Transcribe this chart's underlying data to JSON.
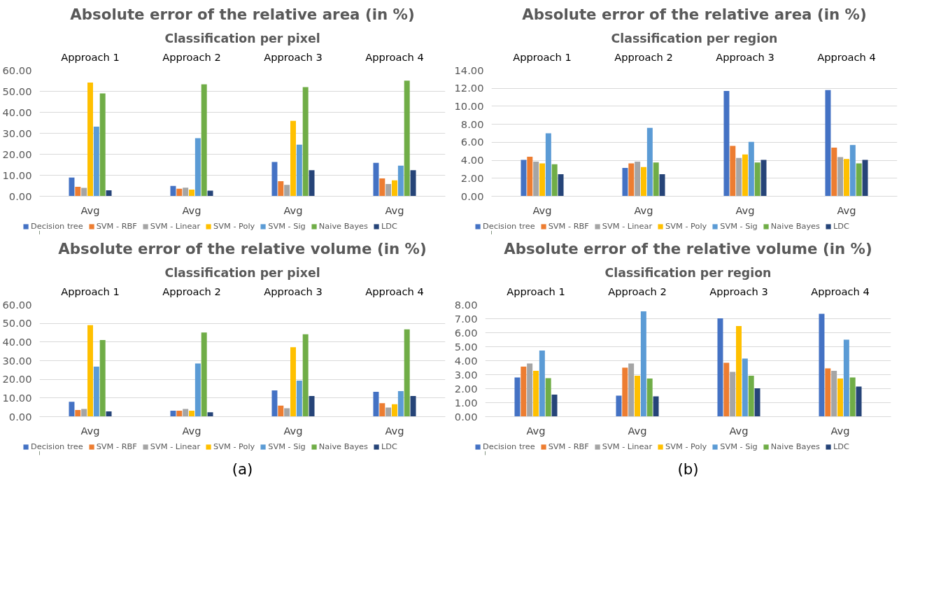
{
  "chart_data": [
    {
      "type": "bar",
      "title": "Absolute error of the relative area (in %)",
      "subtitle": "Classification per pixel",
      "categories": [
        "Avg",
        "Avg",
        "Avg",
        "Avg"
      ],
      "annotations": [
        "Approach 1",
        "Approach 2",
        "Approach 3",
        "Approach 4"
      ],
      "ylim": [
        0,
        60
      ],
      "yticks": [
        {
          "value": 0,
          "label": "0.00"
        },
        {
          "value": 10,
          "label": "10.00"
        },
        {
          "value": 20,
          "label": "20.00"
        },
        {
          "value": 30,
          "label": "30.00"
        },
        {
          "value": 40,
          "label": "40.00"
        },
        {
          "value": 50,
          "label": "50.00"
        },
        {
          "value": 60,
          "label": "60.00"
        }
      ],
      "grid": "y",
      "legend": "bottom",
      "series": [
        {
          "name": "Decision tree",
          "color": "#4472c4",
          "values": [
            8.9,
            4.9,
            16.3,
            15.9
          ]
        },
        {
          "name": "SVM - RBF",
          "color": "#ed7d31",
          "values": [
            4.5,
            3.6,
            7.2,
            8.5
          ]
        },
        {
          "name": "SVM - Linear",
          "color": "#a5a5a5",
          "values": [
            4.0,
            4.1,
            5.4,
            5.8
          ]
        },
        {
          "name": "SVM - Poly",
          "color": "#ffc000",
          "values": [
            54.2,
            3.2,
            35.9,
            7.6
          ]
        },
        {
          "name": "SVM - Sig",
          "color": "#5b9bd5",
          "values": [
            33.2,
            27.7,
            24.6,
            14.6
          ]
        },
        {
          "name": "Naive Bayes",
          "color": "#70ad47",
          "values": [
            49.0,
            53.3,
            52.0,
            55.1
          ]
        },
        {
          "name": "LDC",
          "color": "#264478",
          "values": [
            2.8,
            2.7,
            12.4,
            12.4
          ]
        }
      ]
    },
    {
      "type": "bar",
      "title": "Absolute error of the relative area (in %)",
      "subtitle": "Classification per region",
      "categories": [
        "Avg",
        "Avg",
        "Avg",
        "Avg"
      ],
      "annotations": [
        "Approach 1",
        "Approach 2",
        "Approach 3",
        "Approach 4"
      ],
      "ylim": [
        0,
        14
      ],
      "yticks": [
        {
          "value": 0,
          "label": "0.00"
        },
        {
          "value": 2,
          "label": "2.00"
        },
        {
          "value": 4,
          "label": "4.00"
        },
        {
          "value": 6,
          "label": "6.00"
        },
        {
          "value": 8,
          "label": "8.00"
        },
        {
          "value": 10,
          "label": "10.00"
        },
        {
          "value": 12,
          "label": "12.00"
        },
        {
          "value": 14,
          "label": "14.00"
        }
      ],
      "grid": "y",
      "legend": "bottom",
      "series": [
        {
          "name": "Decision tree",
          "color": "#4472c4",
          "values": [
            4.05,
            3.15,
            11.7,
            11.8
          ]
        },
        {
          "name": "SVM - RBF",
          "color": "#ed7d31",
          "values": [
            4.4,
            3.65,
            5.6,
            5.4
          ]
        },
        {
          "name": "SVM - Linear",
          "color": "#a5a5a5",
          "values": [
            3.85,
            3.85,
            4.25,
            4.35
          ]
        },
        {
          "name": "SVM - Poly",
          "color": "#ffc000",
          "values": [
            3.65,
            3.25,
            4.65,
            4.15
          ]
        },
        {
          "name": "SVM - Sig",
          "color": "#5b9bd5",
          "values": [
            7.0,
            7.6,
            6.05,
            5.7
          ]
        },
        {
          "name": "Naive Bayes",
          "color": "#70ad47",
          "values": [
            3.55,
            3.75,
            3.75,
            3.65
          ]
        },
        {
          "name": "LDC",
          "color": "#264478",
          "values": [
            2.45,
            2.45,
            4.05,
            4.05
          ]
        }
      ]
    },
    {
      "type": "bar",
      "title": "Absolute error of the relative volume (in %)",
      "subtitle": "Classification per pixel",
      "categories": [
        "Avg",
        "Avg",
        "Avg",
        "Avg"
      ],
      "annotations": [
        "Approach 1",
        "Approach 2",
        "Approach 3",
        "Approach 4",
        "(a)"
      ],
      "ylim": [
        0,
        60
      ],
      "yticks": [
        {
          "value": 0,
          "label": "0.00"
        },
        {
          "value": 10,
          "label": "10.00"
        },
        {
          "value": 20,
          "label": "20.00"
        },
        {
          "value": 30,
          "label": "30.00"
        },
        {
          "value": 40,
          "label": "40.00"
        },
        {
          "value": 50,
          "label": "50.00"
        },
        {
          "value": 60,
          "label": "60.00"
        }
      ],
      "grid": "y",
      "legend": "bottom",
      "series": [
        {
          "name": "Decision tree",
          "color": "#4472c4",
          "values": [
            8.0,
            3.2,
            14.1,
            13.3
          ]
        },
        {
          "name": "SVM - RBF",
          "color": "#ed7d31",
          "values": [
            3.6,
            3.2,
            5.9,
            7.2
          ]
        },
        {
          "name": "SVM - Linear",
          "color": "#a5a5a5",
          "values": [
            4.1,
            4.1,
            4.5,
            4.9
          ]
        },
        {
          "name": "SVM - Poly",
          "color": "#ffc000",
          "values": [
            49.0,
            3.2,
            37.2,
            6.7
          ]
        },
        {
          "name": "SVM - Sig",
          "color": "#5b9bd5",
          "values": [
            26.8,
            28.5,
            19.3,
            13.7
          ]
        },
        {
          "name": "Naive Bayes",
          "color": "#70ad47",
          "values": [
            41.1,
            45.1,
            44.2,
            46.8
          ]
        },
        {
          "name": "LDC",
          "color": "#264478",
          "values": [
            2.8,
            2.3,
            11.1,
            11.1
          ]
        }
      ]
    },
    {
      "type": "bar",
      "title": "Absolute error of the relative volume (in %)",
      "subtitle": "Classification per region",
      "categories": [
        "Avg",
        "Avg",
        "Avg",
        "Avg"
      ],
      "annotations": [
        "Approach 1",
        "Approach 2",
        "Approach 3",
        "Approach 4",
        "(b)"
      ],
      "ylim": [
        0,
        8
      ],
      "yticks": [
        {
          "value": 0,
          "label": "0.00"
        },
        {
          "value": 1,
          "label": "1.00"
        },
        {
          "value": 2,
          "label": "2.00"
        },
        {
          "value": 3,
          "label": "3.00"
        },
        {
          "value": 4,
          "label": "4.00"
        },
        {
          "value": 5,
          "label": "5.00"
        },
        {
          "value": 6,
          "label": "6.00"
        },
        {
          "value": 7,
          "label": "7.00"
        },
        {
          "value": 8,
          "label": "8.00"
        }
      ],
      "grid": "y",
      "legend": "bottom",
      "series": [
        {
          "name": "Decision tree",
          "color": "#4472c4",
          "values": [
            2.8,
            1.5,
            7.02,
            7.35
          ]
        },
        {
          "name": "SVM - RBF",
          "color": "#ed7d31",
          "values": [
            3.57,
            3.5,
            3.85,
            3.45
          ]
        },
        {
          "name": "SVM - Linear",
          "color": "#a5a5a5",
          "values": [
            3.8,
            3.8,
            3.2,
            3.27
          ]
        },
        {
          "name": "SVM - Poly",
          "color": "#ffc000",
          "values": [
            3.27,
            2.92,
            6.48,
            2.73
          ]
        },
        {
          "name": "SVM - Sig",
          "color": "#5b9bd5",
          "values": [
            4.73,
            7.53,
            4.15,
            5.5
          ]
        },
        {
          "name": "Naive Bayes",
          "color": "#70ad47",
          "values": [
            2.75,
            2.73,
            2.92,
            2.8
          ]
        },
        {
          "name": "LDC",
          "color": "#264478",
          "values": [
            1.57,
            1.45,
            2.03,
            2.15
          ]
        }
      ]
    }
  ]
}
